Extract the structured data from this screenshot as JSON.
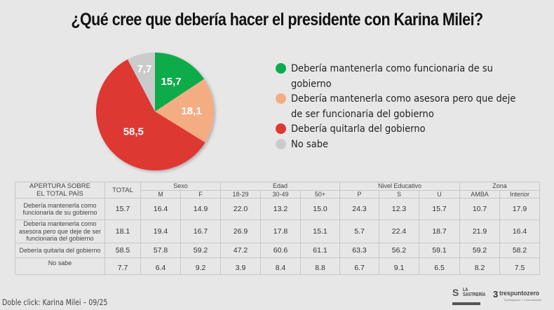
{
  "title": "¿Qué cree que debería hacer el presidente con Karina Milei?",
  "chart_data": {
    "type": "pie",
    "title": "¿Qué cree que debería hacer el presidente con Karina Milei?",
    "slices": [
      {
        "label": "Debería mantenerla como funcionaria de su gobierno",
        "value": 15.7,
        "display": "15,7",
        "color": "#0eab4a"
      },
      {
        "label": "Debería mantenerla como asesora pero que deje de ser funcionaria del gobierno",
        "value": 18.1,
        "display": "18,1",
        "color": "#f4ad83"
      },
      {
        "label": "Debería quitarla del gobierno",
        "value": 58.5,
        "display": "58,5",
        "color": "#de3831"
      },
      {
        "label": "No sabe",
        "value": 7.7,
        "display": "7,7",
        "color": "#cbcbcb"
      }
    ],
    "start_angle": "12 o'clock, clockwise",
    "legend_position": "right"
  },
  "legend": [
    {
      "label_lines": [
        "Debería mantenerla como funcionaria de su",
        "gobierno"
      ],
      "color": "#0eab4a"
    },
    {
      "label_lines": [
        "Debería mantenerla como asesora pero que deje",
        "de ser funcionaria del gobierno"
      ],
      "color": "#f4ad83"
    },
    {
      "label_lines": [
        "Debería quitarla del gobierno"
      ],
      "color": "#de3831"
    },
    {
      "label_lines": [
        "No sabe"
      ],
      "color": "#cbcbcb"
    }
  ],
  "table": {
    "corner_header_lines": [
      "APERTURA SOBRE",
      "EL TOTAL PAÍS"
    ],
    "total_header": "TOTAL",
    "groups": [
      {
        "name": "Sexo",
        "columns": [
          "M",
          "F"
        ]
      },
      {
        "name": "Edad",
        "columns": [
          "18-29",
          "30-49",
          "50+"
        ]
      },
      {
        "name": "Nivel Educativo",
        "columns": [
          "P",
          "S",
          "U"
        ]
      },
      {
        "name": "Zona",
        "columns": [
          "AMBA",
          "Interior"
        ]
      }
    ],
    "rows": [
      {
        "label_lines": [
          "Debería mantenerla como",
          "funcionaria de su gobierno"
        ],
        "values": [
          "15.7",
          "16.4",
          "14.9",
          "22.0",
          "13.2",
          "15.0",
          "24.3",
          "12.3",
          "15.7",
          "10.7",
          "17.9"
        ]
      },
      {
        "label_lines": [
          "Debería mantenerla como",
          "asesora pero que deje de ser",
          "funcionaria del gobierno"
        ],
        "values": [
          "18.1",
          "19.4",
          "16.7",
          "26.9",
          "17.8",
          "15.1",
          "5.7",
          "22.4",
          "18.7",
          "21.9",
          "16.4"
        ]
      },
      {
        "label_lines": [
          "Debería quitarla del gobierno"
        ],
        "values": [
          "58.5",
          "57.8",
          "59.2",
          "47.2",
          "60.6",
          "61.1",
          "63.3",
          "56.2",
          "59.1",
          "59.2",
          "58.2"
        ]
      },
      {
        "label_lines": [
          "No sabe"
        ],
        "values": [
          "7.7",
          "6.4",
          "9.2",
          "3.9",
          "8.4",
          "8.8",
          "6.7",
          "9.1",
          "6.5",
          "8.2",
          "7.5"
        ]
      }
    ]
  },
  "footer": "Doble click: Karina Milei – 09/25",
  "logos": {
    "sastreria": {
      "lines": [
        "LA",
        "SASTRERÍA"
      ],
      "icon": "s-logo-icon"
    },
    "trespuntozero": {
      "mark": "3",
      "name": "trespuntozero",
      "sub": "Investigación + Comunicación"
    }
  }
}
